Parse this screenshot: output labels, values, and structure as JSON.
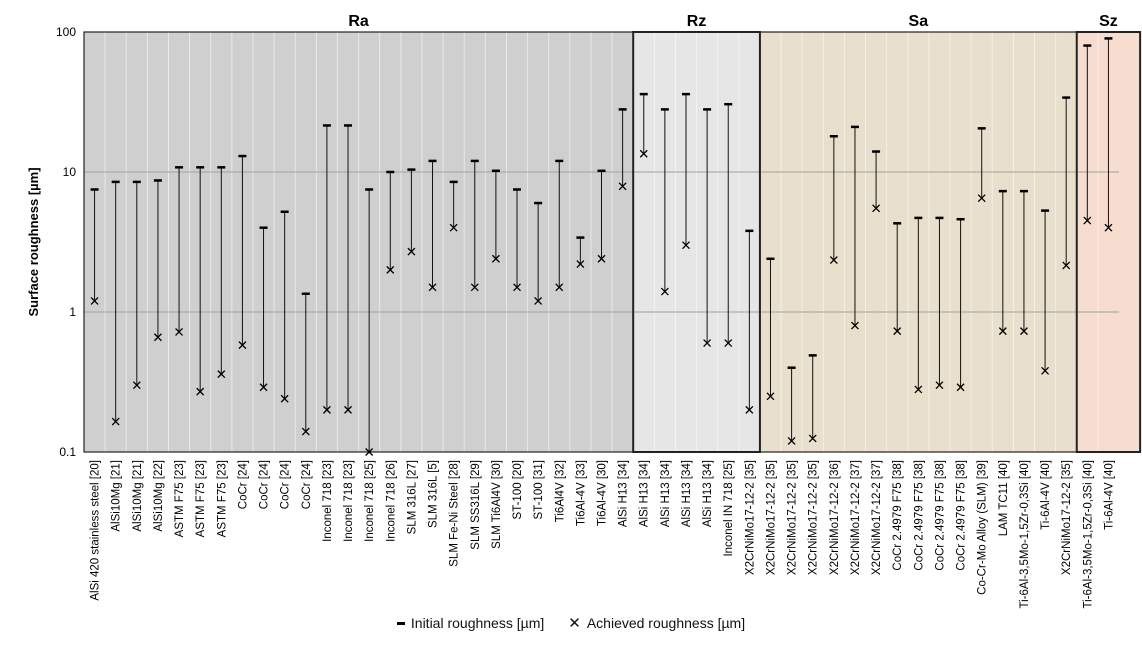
{
  "chart_data": {
    "type": "scatter",
    "y_scale": "log",
    "ylim": [
      0.1,
      100
    ],
    "ylabel": "Surface roughness [µm]",
    "y_ticks": [
      "0.1",
      "1",
      "10",
      "100"
    ],
    "grid": true,
    "legend_position": "bottom-center",
    "legend": {
      "initial": "Initial roughness [µm]",
      "achieved": "Achieved roughness [µm]"
    },
    "groups": [
      {
        "name": "Ra",
        "start": 0,
        "end": 25,
        "color": "#cfcfcf"
      },
      {
        "name": "Rz",
        "start": 26,
        "end": 31,
        "color": "#e6e6e6"
      },
      {
        "name": "Sa",
        "start": 32,
        "end": 46,
        "color": "#e8dfcc"
      },
      {
        "name": "Sz",
        "start": 47,
        "end": 49,
        "color": "#f6ddd0"
      }
    ],
    "categories": [
      "AlSi 420 stainless steel [20]",
      "AlSi10Mg [21]",
      "AlSi10Mg [21]",
      "AlSi10Mg [22]",
      "ASTM F75 [23]",
      "ASTM F75 [23]",
      "ASTM F75 [23]",
      "CoCr [24]",
      "CoCr [24]",
      "CoCr [24]",
      "CoCr [24]",
      "Inconel 718 [23]",
      "Inconel 718 [23]",
      "Inconel 718 [25]",
      "Inconel 718 [26]",
      "SLM 316L [27]",
      "SLM 316L [5]",
      "SLM Fe-Ni Steel [28]",
      "SLM SS316L [29]",
      "SLM Ti6Al4V [30]",
      "ST-100 [20]",
      "ST-100 [31]",
      "Ti6Al4V [32]",
      "Ti6Al-4V [33]",
      "Ti6Al-4V [30]",
      "AlSi H13 [34]",
      "AlSi H13 [34]",
      "AlSi H13 [34]",
      "AlSi H13 [34]",
      "AlSi H13 [34]",
      "Inconel IN 718 [25]",
      "X2CrNiMo17-12-2 [35]",
      "X2CrNiMo17-12-2 [35]",
      "X2CrNiMo17-12-2 [35]",
      "X2CrNiMo17-12-2 [35]",
      "X2CrNiMo17-12-2 [36]",
      "X2CrNiMo17-12-2 [37]",
      "X2CrNiMo17-12-2 [37]",
      "CoCr 2.4979 F75 [38]",
      "CoCr 2.4979 F75 [38]",
      "CoCr 2.4979 F75 [38]",
      "CoCr 2.4979 F75 [38]",
      "Co-Cr-Mo Alloy (SLM) [39]",
      "LAM TC11 [40]",
      "Ti-6Al-3,5Mo-1,5Zr-0,3Si [40]",
      "Ti-6Al-4V [40]",
      "X2CrNiMo17-12-2 [35]",
      "Ti-6Al-3,5Mo-1,5Zr-0,3Si [40]",
      "Ti-6Al-4V [40]"
    ],
    "series": [
      {
        "name": "Initial roughness [µm]",
        "values": [
          7.5,
          8.5,
          8.5,
          8.7,
          10.8,
          10.8,
          10.8,
          13,
          4,
          5.2,
          1.35,
          21.5,
          21.5,
          7.5,
          10,
          10.4,
          12,
          8.5,
          12,
          10.2,
          7.5,
          6,
          12,
          3.4,
          10.2,
          28,
          36,
          28,
          36,
          28,
          30.5,
          3.8,
          2.4,
          0.4,
          0.49,
          18,
          21,
          14,
          4.3,
          4.7,
          4.7,
          4.6,
          20.5,
          7.3,
          7.3,
          5.3,
          34,
          80,
          90
        ]
      },
      {
        "name": "Achieved roughness [µm]",
        "values": [
          1.2,
          0.165,
          0.3,
          0.66,
          0.72,
          0.27,
          0.36,
          0.58,
          0.29,
          0.24,
          0.14,
          0.2,
          0.2,
          0.1,
          2.0,
          2.7,
          1.5,
          4.0,
          1.5,
          2.4,
          1.5,
          1.2,
          1.5,
          2.2,
          2.4,
          7.9,
          13.5,
          1.4,
          3.0,
          0.6,
          0.6,
          0.2,
          0.25,
          0.12,
          0.125,
          2.35,
          0.8,
          5.5,
          0.73,
          0.28,
          0.3,
          0.29,
          6.5,
          0.73,
          0.73,
          0.38,
          2.15,
          4.5,
          4.0
        ]
      }
    ]
  }
}
